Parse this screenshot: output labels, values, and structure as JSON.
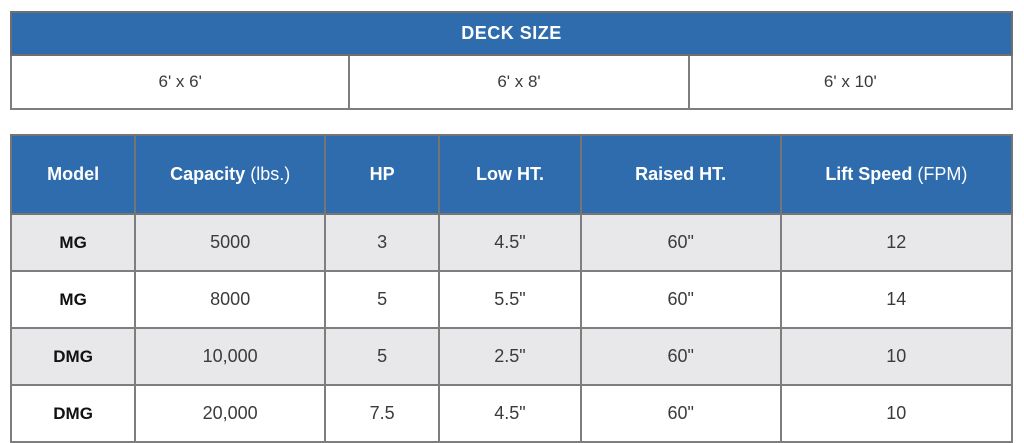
{
  "colors": {
    "header_blue": "#2e6cae",
    "header_text": "#ffffff",
    "row_alternate_gray": "#e8e8ea",
    "row_white": "#ffffff",
    "grid_border": "#7e7e7e",
    "body_text": "#3b3b3b"
  },
  "deck_size_table": {
    "title": "DECK SIZE",
    "sizes": [
      "6' x 6'",
      "6' x 8'",
      "6' x 10'"
    ]
  },
  "spec_table": {
    "columns": [
      {
        "bold": "Model",
        "normal": ""
      },
      {
        "bold": "Capacity",
        "normal": " (lbs.)"
      },
      {
        "bold": "HP",
        "normal": ""
      },
      {
        "bold": "Low HT.",
        "normal": ""
      },
      {
        "bold": "Raised HT.",
        "normal": ""
      },
      {
        "bold": "Lift Speed",
        "normal": " (FPM)"
      }
    ],
    "rows": [
      {
        "model": "MG",
        "capacity": "5000",
        "hp": "3",
        "low_ht": "4.5\"",
        "raised_ht": "60\"",
        "lift_speed": "12"
      },
      {
        "model": "MG",
        "capacity": "8000",
        "hp": "5",
        "low_ht": "5.5\"",
        "raised_ht": "60\"",
        "lift_speed": "14"
      },
      {
        "model": "DMG",
        "capacity": "10,000",
        "hp": "5",
        "low_ht": "2.5\"",
        "raised_ht": "60\"",
        "lift_speed": "10"
      },
      {
        "model": "DMG",
        "capacity": "20,000",
        "hp": "7.5",
        "low_ht": "4.5\"",
        "raised_ht": "60\"",
        "lift_speed": "10"
      }
    ]
  }
}
